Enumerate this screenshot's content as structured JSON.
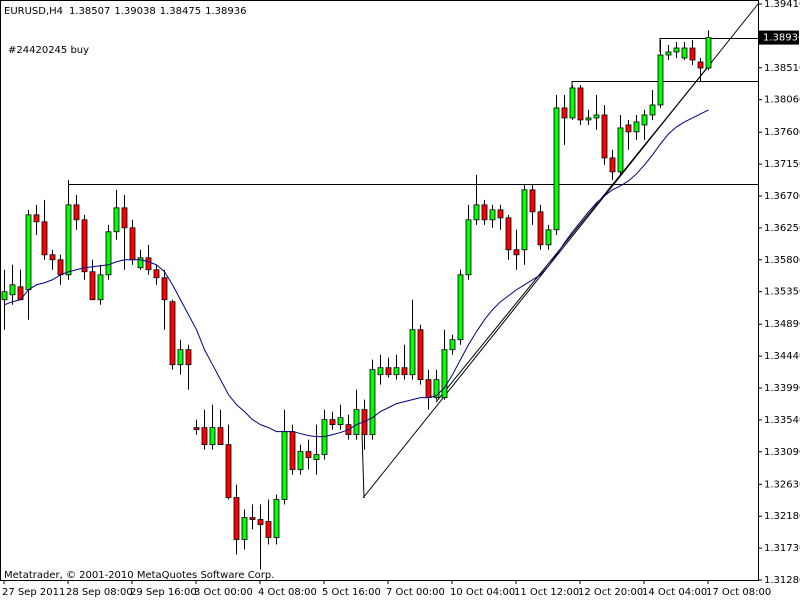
{
  "chart_data": {
    "type": "candlestick",
    "title": "EURUSD,H4",
    "annotation": "#24420245 buy",
    "footer": "Metatrader, © 2001-2010 MetaQuotes Software Corp.",
    "categories": [
      "27 Sep 2011",
      null,
      null,
      null,
      null,
      null,
      null,
      null,
      "28 Sep 08:00",
      null,
      null,
      null,
      null,
      null,
      null,
      null,
      "29 Sep 16:00",
      null,
      null,
      null,
      null,
      null,
      null,
      null,
      "3 Oct 00:00",
      null,
      null,
      null,
      null,
      null,
      null,
      null,
      "4 Oct 08:00",
      null,
      null,
      null,
      null,
      null,
      null,
      null,
      "5 Oct 16:00",
      null,
      null,
      null,
      null,
      null,
      null,
      null,
      "7 Oct 00:00",
      null,
      null,
      null,
      null,
      null,
      null,
      null,
      "10 Oct 04:00",
      null,
      null,
      null,
      null,
      null,
      null,
      null,
      "11 Oct 12:00",
      null,
      null,
      null,
      null,
      null,
      null,
      null,
      "12 Oct 20:00",
      null,
      null,
      null,
      null,
      null,
      null,
      null,
      "14 Oct 04:00",
      null,
      null,
      null,
      null,
      null,
      null,
      null,
      "17 Oct 08:00"
    ],
    "open": [
      1.35236,
      1.35306,
      1.35419,
      1.35377,
      1.36434,
      1.36336,
      1.3587,
      1.358,
      1.35588,
      1.36575,
      1.36364,
      1.35631,
      1.35236,
      1.35588,
      1.36195,
      1.36533,
      1.36251,
      1.35687,
      1.35828,
      1.35659,
      1.35546,
      1.35208,
      1.34319,
      1.34531,
      1.33431,
      1.33431,
      1.33191,
      1.33431,
      1.33191,
      1.32444,
      1.31852,
      1.32162,
      1.32134,
      1.32106,
      1.3188,
      1.32416,
      1.33375,
      1.32839,
      1.33093,
      1.3298,
      1.3305,
      1.33544,
      1.33473,
      1.33473,
      1.33332,
      1.33685,
      1.33332,
      1.34178,
      1.34277,
      1.34178,
      1.34277,
      1.34178,
      1.34813,
      1.34108,
      1.33854,
      1.33854,
      1.34531,
      1.34672,
      1.35588,
      1.36364,
      1.36575,
      1.36364,
      1.36505,
      1.36392,
      1.35941,
      1.35941,
      1.36787,
      1.36477,
      1.36011,
      1.36223,
      1.37943,
      1.37802,
      1.38225,
      1.37774,
      1.37802,
      1.37844,
      1.37238,
      1.37041,
      1.37703,
      1.37605,
      1.37703,
      1.37844,
      1.37985,
      1.3869,
      1.38733,
      1.38648,
      1.38789,
      1.38592,
      1.38507
    ],
    "high": [
      1.35659,
      1.35729,
      1.35659,
      1.36505,
      1.36575,
      1.36646,
      1.35941,
      1.3587,
      1.36928,
      1.36716,
      1.36434,
      1.358,
      1.35729,
      1.36293,
      1.36787,
      1.36716,
      1.36364,
      1.35941,
      1.36011,
      1.35729,
      1.35659,
      1.35236,
      1.34672,
      1.34601,
      1.33544,
      1.33685,
      1.33755,
      1.33685,
      1.33473,
      1.32627,
      1.32275,
      1.32345,
      1.32345,
      1.32416,
      1.32486,
      1.33685,
      1.33473,
      1.33191,
      1.33262,
      1.33473,
      1.33685,
      1.33657,
      1.33755,
      1.33614,
      1.33967,
      1.33826,
      1.3439,
      1.3446,
      1.34418,
      1.3446,
      1.34601,
      1.35236,
      1.34883,
      1.34249,
      1.34249,
      1.34813,
      1.34742,
      1.35659,
      1.36575,
      1.36998,
      1.36646,
      1.36575,
      1.36575,
      1.36434,
      1.36223,
      1.36857,
      1.36857,
      1.36575,
      1.36293,
      1.38126,
      1.38126,
      1.38267,
      1.38267,
      1.37915,
      1.38126,
      1.37985,
      1.37351,
      1.37844,
      1.37774,
      1.37844,
      1.37915,
      1.38197,
      1.38902,
      1.38831,
      1.38874,
      1.38874,
      1.38902,
      1.38648,
      1.39038
    ],
    "low": [
      1.34813,
      1.35165,
      1.35236,
      1.34954,
      1.36152,
      1.358,
      1.35659,
      1.35447,
      1.35518,
      1.36223,
      1.35518,
      1.35236,
      1.35165,
      1.35518,
      1.36082,
      1.35659,
      1.35729,
      1.35659,
      1.35588,
      1.35447,
      1.34813,
      1.34249,
      1.34178,
      1.33967,
      1.33332,
      1.33121,
      1.33121,
      1.33191,
      1.32416,
      1.3164,
      1.31711,
      1.31993,
      1.31429,
      1.31781,
      1.31781,
      1.32345,
      1.32768,
      1.32768,
      1.32839,
      1.32768,
      1.3298,
      1.33403,
      1.33403,
      1.33262,
      1.33262,
      1.33121,
      1.33262,
      1.34037,
      1.34136,
      1.34108,
      1.34108,
      1.34108,
      1.34037,
      1.33685,
      1.33826,
      1.33826,
      1.3446,
      1.34601,
      1.35518,
      1.36293,
      1.36293,
      1.36251,
      1.36223,
      1.358,
      1.35659,
      1.35729,
      1.36293,
      1.35941,
      1.35941,
      1.36152,
      1.37421,
      1.37774,
      1.37703,
      1.37703,
      1.37633,
      1.37139,
      1.36928,
      1.36998,
      1.37351,
      1.37492,
      1.37492,
      1.37774,
      1.37943,
      1.3862,
      1.38648,
      1.3862,
      1.38549,
      1.3831,
      1.38475
    ],
    "close": [
      1.35349,
      1.35447,
      1.35236,
      1.36434,
      1.36336,
      1.3587,
      1.358,
      1.35588,
      1.36575,
      1.36364,
      1.35631,
      1.35236,
      1.35588,
      1.36195,
      1.36533,
      1.36251,
      1.358,
      1.35828,
      1.35659,
      1.35546,
      1.35236,
      1.34319,
      1.34531,
      1.34319,
      1.33403,
      1.33191,
      1.33431,
      1.33191,
      1.32444,
      1.31852,
      1.32162,
      1.32134,
      1.32063,
      1.3188,
      1.32416,
      1.33375,
      1.32839,
      1.33093,
      1.33008,
      1.3305,
      1.33544,
      1.33473,
      1.33572,
      1.33332,
      1.33685,
      1.33332,
      1.34249,
      1.34277,
      1.34178,
      1.34277,
      1.34178,
      1.34813,
      1.34108,
      1.33854,
      1.34108,
      1.34531,
      1.34672,
      1.35588,
      1.36364,
      1.36575,
      1.36364,
      1.36505,
      1.36392,
      1.35941,
      1.3587,
      1.36787,
      1.36477,
      1.36011,
      1.36223,
      1.37943,
      1.37802,
      1.38225,
      1.37774,
      1.37802,
      1.37844,
      1.37238,
      1.37041,
      1.37661,
      1.37605,
      1.37746,
      1.37844,
      1.37985,
      1.3869,
      1.38733,
      1.38789,
      1.38789,
      1.3862,
      1.38507,
      1.38936
    ],
    "up_color": "#00ff00",
    "down_color": "#ff0000",
    "ma": {
      "color": "#000080",
      "values": [
        1.35165,
        1.35208,
        1.35236,
        1.35377,
        1.35447,
        1.35476,
        1.35518,
        1.35588,
        1.35631,
        1.35659,
        1.35687,
        1.35701,
        1.35715,
        1.35729,
        1.35772,
        1.358,
        1.358,
        1.358,
        1.35772,
        1.35729,
        1.35631,
        1.35447,
        1.35236,
        1.35024,
        1.34813,
        1.34531,
        1.34319,
        1.34108,
        1.33896,
        1.33755,
        1.33657,
        1.33544,
        1.33473,
        1.33431,
        1.33375,
        1.33375,
        1.33375,
        1.33347,
        1.33318,
        1.33304,
        1.33304,
        1.33332,
        1.33361,
        1.33403,
        1.33473,
        1.33516,
        1.33572,
        1.33657,
        1.33713,
        1.3377,
        1.33798,
        1.33826,
        1.33854,
        1.33854,
        1.33882,
        1.33995,
        1.34178,
        1.3439,
        1.34601,
        1.34785,
        1.34954,
        1.35095,
        1.35208,
        1.35292,
        1.35377,
        1.35447,
        1.35518,
        1.35588,
        1.35715,
        1.3587,
        1.3604,
        1.36195,
        1.36336,
        1.36477,
        1.36604,
        1.36702,
        1.36787,
        1.36843,
        1.36914,
        1.37013,
        1.37139,
        1.3728,
        1.37436,
        1.37577,
        1.37675,
        1.37746,
        1.37802,
        1.37859,
        1.37915
      ]
    },
    "ylim": [
      1.3128,
      1.3941
    ],
    "yticks": [
      {
        "value": 1.3941,
        "label": "1.39410"
      },
      {
        "value": 1.3851,
        "label": "1.38510"
      },
      {
        "value": 1.3806,
        "label": "1.38060"
      },
      {
        "value": 1.376,
        "label": "1.37600"
      },
      {
        "value": 1.3715,
        "label": "1.37150"
      },
      {
        "value": 1.367,
        "label": "1.36700"
      },
      {
        "value": 1.3625,
        "label": "1.36250"
      },
      {
        "value": 1.358,
        "label": "1.35800"
      },
      {
        "value": 1.3535,
        "label": "1.35350"
      },
      {
        "value": 1.3489,
        "label": "1.34890"
      },
      {
        "value": 1.3444,
        "label": "1.34440"
      },
      {
        "value": 1.3399,
        "label": "1.33990"
      },
      {
        "value": 1.3354,
        "label": "1.33540"
      },
      {
        "value": 1.3309,
        "label": "1.33090"
      },
      {
        "value": 1.3263,
        "label": "1.32630"
      },
      {
        "value": 1.3218,
        "label": "1.32180"
      },
      {
        "value": 1.3173,
        "label": "1.31730"
      },
      {
        "value": 1.3128,
        "label": "1.31280"
      }
    ],
    "grid": false
  }
}
